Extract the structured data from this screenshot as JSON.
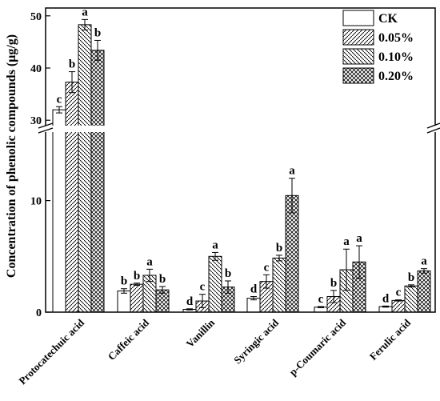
{
  "chart_data": {
    "type": "bar",
    "ylabel": "Concentration of phenolic compounds (μg/g)",
    "ylim_lower": [
      0,
      16.5
    ],
    "ylim_upper": [
      28.5,
      51.5
    ],
    "y_ticks": [
      0,
      10,
      30,
      40,
      50
    ],
    "y_tick_labels": [
      "0",
      "10",
      "30",
      "40",
      "50"
    ],
    "categories": [
      "Protocatechuic acid",
      "Caffeic acid",
      "Vanillin",
      "Syringic acid",
      "p-Coumaric acid",
      "Ferulic acid"
    ],
    "legend_position": "top-right",
    "series": [
      {
        "name": "CK",
        "pattern": "none",
        "values": [
          32.0,
          1.9,
          0.25,
          1.25,
          0.45,
          0.5
        ],
        "errors": [
          0.6,
          0.2,
          0.05,
          0.15,
          0.05,
          0.05
        ],
        "labels": [
          "c",
          "b",
          "d",
          "d",
          "c",
          "d"
        ]
      },
      {
        "name": "0.05%",
        "pattern": "diag-right",
        "values": [
          37.3,
          2.5,
          1.0,
          2.75,
          1.4,
          1.05
        ],
        "errors": [
          2.0,
          0.1,
          0.6,
          0.6,
          0.55,
          0.05
        ],
        "labels": [
          "b",
          "b",
          "c",
          "c",
          "b",
          "c"
        ]
      },
      {
        "name": "0.10%",
        "pattern": "diag-left",
        "values": [
          48.3,
          3.3,
          5.0,
          4.85,
          3.8,
          2.35
        ],
        "errors": [
          1.0,
          0.55,
          0.35,
          0.25,
          1.85,
          0.1
        ],
        "labels": [
          "a",
          "a",
          "a",
          "b",
          "a",
          "b"
        ]
      },
      {
        "name": "0.20%",
        "pattern": "cross",
        "values": [
          43.4,
          2.0,
          2.25,
          10.45,
          4.5,
          3.7
        ],
        "errors": [
          1.9,
          0.3,
          0.55,
          1.55,
          1.45,
          0.2
        ],
        "labels": [
          "b",
          "b",
          "b",
          "a",
          "a",
          "a"
        ]
      }
    ]
  }
}
